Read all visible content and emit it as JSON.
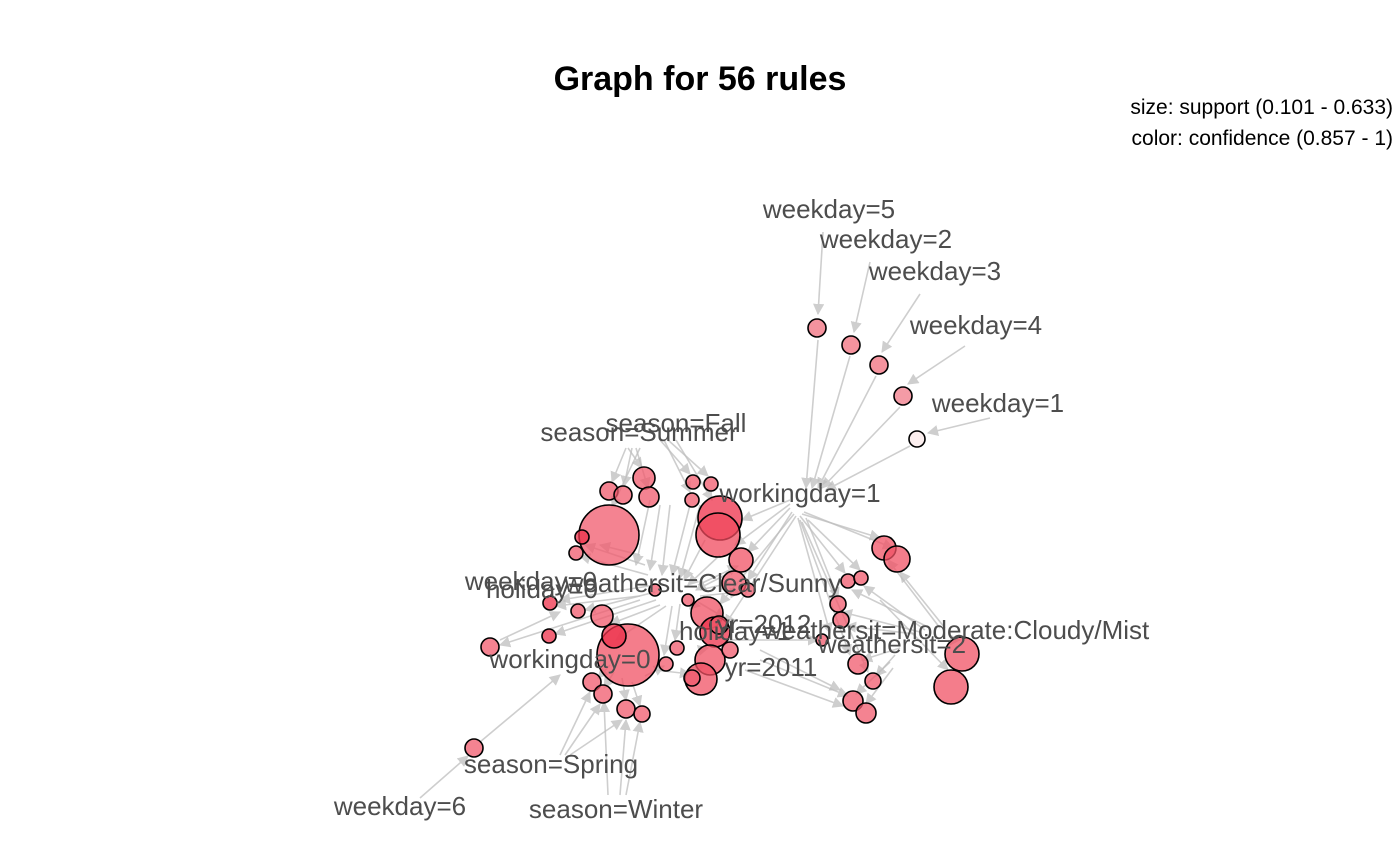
{
  "title": "Graph for 56 rules",
  "legend": {
    "size": "size: support (0.101 - 0.633)",
    "color": "color: confidence (0.857 - 1)"
  },
  "colors": {
    "edge": "#bebebe",
    "low_confidence": "#fbe9ea",
    "high_confidence": "#ee1c3a",
    "item_label": "#4d4d4d"
  },
  "items": [
    {
      "id": "wd5",
      "label": "weekday=5"
    },
    {
      "id": "wd2",
      "label": "weekday=2"
    },
    {
      "id": "wd3",
      "label": "weekday=3"
    },
    {
      "id": "wd4",
      "label": "weekday=4"
    },
    {
      "id": "wd1",
      "label": "weekday=1"
    },
    {
      "id": "fall",
      "label": "season=Fall"
    },
    {
      "id": "summer",
      "label": "season=Summer"
    },
    {
      "id": "wk1",
      "label": "workingday=1"
    },
    {
      "id": "wd0",
      "label": "weekday=0"
    },
    {
      "id": "hol0",
      "label": "holiday=0"
    },
    {
      "id": "clear",
      "label": "weathersit=Clear/Sunny"
    },
    {
      "id": "yr2012",
      "label": "yr=2012"
    },
    {
      "id": "hol1",
      "label": "holiday=1"
    },
    {
      "id": "mist",
      "label": "weathersit=Moderate:Cloudy/Mist"
    },
    {
      "id": "ws2",
      "label": "weathersit=2"
    },
    {
      "id": "wk0",
      "label": "workingday=0"
    },
    {
      "id": "yr2011",
      "label": "yr=2011"
    },
    {
      "id": "spring",
      "label": "season=Spring"
    },
    {
      "id": "wd6",
      "label": "weekday=6"
    },
    {
      "id": "winter",
      "label": "season=Winter"
    }
  ]
}
